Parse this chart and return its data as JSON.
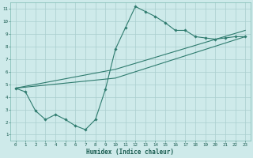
{
  "xlabel": "Humidex (Indice chaleur)",
  "bg_color": "#ceeaea",
  "grid_color": "#aacece",
  "line_color": "#2e7b6e",
  "xlim": [
    -0.5,
    23.5
  ],
  "ylim": [
    0.5,
    11.5
  ],
  "xticks": [
    0,
    1,
    2,
    3,
    4,
    5,
    6,
    7,
    8,
    9,
    10,
    11,
    12,
    13,
    14,
    15,
    16,
    17,
    18,
    19,
    20,
    21,
    22,
    23
  ],
  "yticks": [
    1,
    2,
    3,
    4,
    5,
    6,
    7,
    8,
    9,
    10,
    11
  ],
  "line1_x": [
    0,
    1,
    2,
    3,
    4,
    5,
    6,
    7,
    8,
    9,
    10,
    11,
    12,
    13,
    14,
    15,
    16,
    17,
    18,
    19,
    20,
    21,
    22,
    23
  ],
  "line1_y": [
    4.7,
    4.4,
    2.9,
    2.2,
    2.6,
    2.2,
    1.7,
    1.4,
    2.2,
    4.6,
    7.8,
    9.5,
    11.2,
    10.8,
    10.4,
    9.9,
    9.3,
    9.3,
    8.8,
    8.7,
    8.6,
    8.7,
    8.8,
    8.8
  ],
  "line2_x": [
    0,
    10,
    23
  ],
  "line2_y": [
    4.7,
    5.5,
    8.8
  ],
  "line3_x": [
    0,
    10,
    23
  ],
  "line3_y": [
    4.7,
    6.2,
    9.3
  ]
}
